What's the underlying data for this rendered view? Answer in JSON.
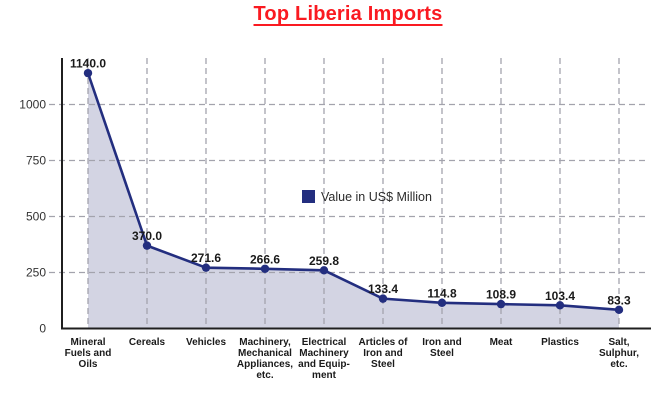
{
  "title": "Top Liberia Imports",
  "legend": {
    "label": "Value in US$ Million"
  },
  "colors": {
    "title": "#fa1a21",
    "line": "#232e7f",
    "marker": "#232e7f",
    "area_fill": "#d3d4e3",
    "grid": "#a3a3ad",
    "axis": "#1f1f1f",
    "value_label": "#1a1a1a",
    "tick_label": "#333333",
    "legend_swatch": "#232e7f",
    "legend_text": "#2b2b2b",
    "background": "#ffffff"
  },
  "chart_data": {
    "type": "area",
    "title": "Top Liberia Imports",
    "series_name": "Value in US$ Million",
    "categories": [
      "Mineral Fuels and Oils",
      "Cereals",
      "Vehicles",
      "Machinery, Mechanical Appliances, etc.",
      "Electrical Machinery and Equipment",
      "Articles of Iron and Steel",
      "Iron and Steel",
      "Meat",
      "Plastics",
      "Salt, Sulphur, etc."
    ],
    "category_display_lines": [
      [
        "Mineral",
        "Fuels and",
        "Oils"
      ],
      [
        "Cereals"
      ],
      [
        "Vehicles"
      ],
      [
        "Machinery,",
        "Mechanical",
        "Appliances,",
        "etc."
      ],
      [
        "Electrical",
        "Machinery",
        "and Equip-",
        "ment"
      ],
      [
        "Articles of",
        "Iron and",
        "Steel"
      ],
      [
        "Iron and",
        "Steel"
      ],
      [
        "Meat"
      ],
      [
        "Plastics"
      ],
      [
        "Salt,",
        "Sulphur,",
        "etc."
      ]
    ],
    "values": [
      1140.0,
      370.0,
      271.6,
      266.6,
      259.8,
      133.4,
      114.8,
      108.9,
      103.4,
      83.3
    ],
    "value_labels": [
      "1140.0",
      "370.0",
      "271.6",
      "266.6",
      "259.8",
      "133.4",
      "114.8",
      "108.9",
      "103.4",
      "83.3"
    ],
    "yticks": [
      0,
      250,
      500,
      750,
      1000
    ],
    "ylim": [
      0,
      1250
    ],
    "xlabel": "",
    "ylabel": "",
    "grid": true,
    "grid_style": "dashed",
    "legend_position": "center",
    "marker": "circle"
  }
}
